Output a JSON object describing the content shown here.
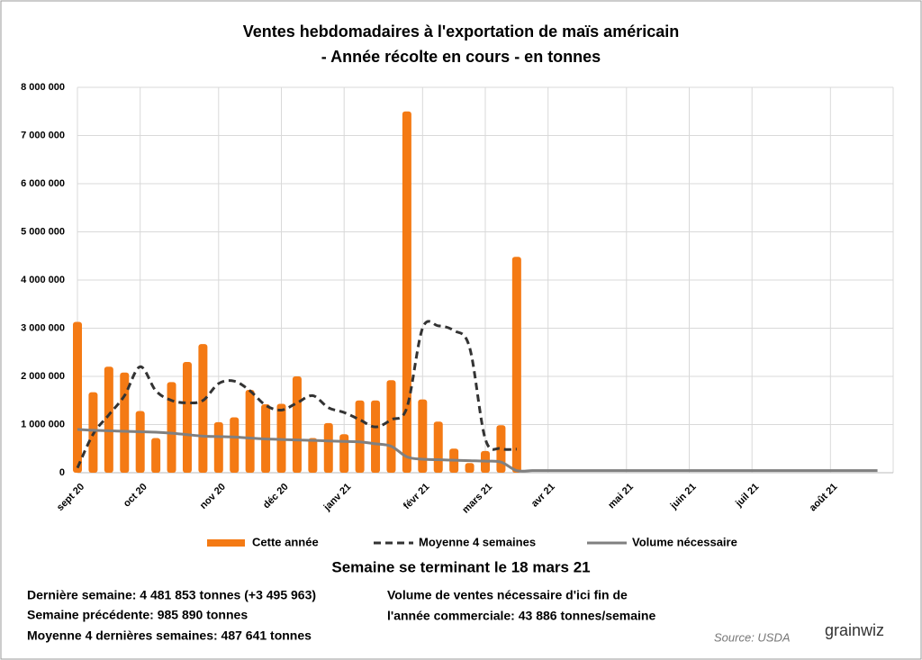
{
  "chart_data": {
    "type": "bar",
    "title": "Ventes hebdomadaires à l'exportation de maïs américain",
    "subtitle": "- Année récolte en cours - en tonnes",
    "categories": [
      "sept 20",
      null,
      null,
      null,
      "oct 20",
      null,
      null,
      null,
      null,
      "nov 20",
      null,
      null,
      null,
      "déc 20",
      null,
      null,
      null,
      "janv 21",
      null,
      null,
      null,
      null,
      "févr 21",
      null,
      null,
      null,
      "mars 21",
      null,
      null,
      null,
      "avr 21",
      null,
      null,
      null,
      null,
      "mai 21",
      null,
      null,
      null,
      "juin 21",
      null,
      null,
      null,
      "juil 21",
      null,
      null,
      null,
      null,
      "août 21",
      null,
      null,
      null
    ],
    "series": [
      {
        "name": "Cette année",
        "type": "bar",
        "color": "#f47a14",
        "values": [
          3130000,
          1670000,
          2200000,
          2080000,
          1280000,
          720000,
          1880000,
          2300000,
          2670000,
          1050000,
          1150000,
          1720000,
          1420000,
          1430000,
          2000000,
          720000,
          1030000,
          800000,
          1500000,
          1500000,
          1920000,
          7500000,
          1520000,
          1060000,
          500000,
          200000,
          450000,
          985890,
          4481853,
          null,
          null,
          null,
          null,
          null,
          null,
          null,
          null,
          null,
          null,
          null,
          null,
          null,
          null,
          null,
          null,
          null,
          null,
          null,
          null,
          null,
          null,
          null
        ]
      },
      {
        "name": "Moyenne 4 semaines",
        "type": "line",
        "dashed": true,
        "color": "#333333",
        "values": [
          100000,
          800000,
          1200000,
          1600000,
          2200000,
          1700000,
          1500000,
          1450000,
          1500000,
          1850000,
          1900000,
          1700000,
          1400000,
          1300000,
          1450000,
          1600000,
          1350000,
          1250000,
          1100000,
          950000,
          1100000,
          1350000,
          3000000,
          3050000,
          2950000,
          2600000,
          700000,
          500000,
          487641,
          null,
          null,
          null,
          null,
          null,
          null,
          null,
          null,
          null,
          null,
          null,
          null,
          null,
          null,
          null,
          null,
          null,
          null,
          null,
          null,
          null,
          null,
          null
        ]
      },
      {
        "name": "Volume nécessaire",
        "type": "line",
        "dashed": false,
        "color": "#808080",
        "values": [
          900000,
          880000,
          870000,
          860000,
          850000,
          840000,
          820000,
          790000,
          760000,
          750000,
          740000,
          720000,
          700000,
          690000,
          680000,
          670000,
          660000,
          650000,
          640000,
          600000,
          550000,
          330000,
          280000,
          270000,
          260000,
          250000,
          240000,
          220000,
          43886,
          43886,
          43886,
          43886,
          43886,
          43886,
          43886,
          43886,
          43886,
          43886,
          43886,
          43886,
          43886,
          43886,
          43886,
          43886,
          43886,
          43886,
          43886,
          43886,
          43886,
          43886,
          43886,
          43886
        ]
      }
    ],
    "ylim": [
      0,
      8000000
    ],
    "yticks": [
      0,
      {
        "value": 1000000,
        "label": "1 000 000"
      },
      {
        "value": 2000000,
        "label": "2 000 000"
      },
      {
        "value": 3000000,
        "label": "3 000 000"
      },
      {
        "value": 4000000,
        "label": "4 000 000"
      },
      {
        "value": 5000000,
        "label": "5 000 000"
      },
      {
        "value": 6000000,
        "label": "6 000 000"
      },
      {
        "value": 7000000,
        "label": "7 000 000"
      },
      {
        "value": 8000000,
        "label": "8 000 000"
      }
    ],
    "grid": true,
    "legend": "bottom",
    "heading": "Semaine se terminant le 18 mars 21",
    "notes_left": [
      "Dernière semaine: 4 481 853 tonnes (+3 495 963)",
      "Semaine précédente: 985 890 tonnes",
      "Moyenne 4 dernières semaines: 487 641 tonnes"
    ],
    "notes_right": [
      "Volume de ventes nécessaire d'ici fin de",
      "l'année commerciale: 43 886 tonnes/semaine"
    ],
    "source": "Source:  USDA",
    "logo": "grainwiz"
  }
}
